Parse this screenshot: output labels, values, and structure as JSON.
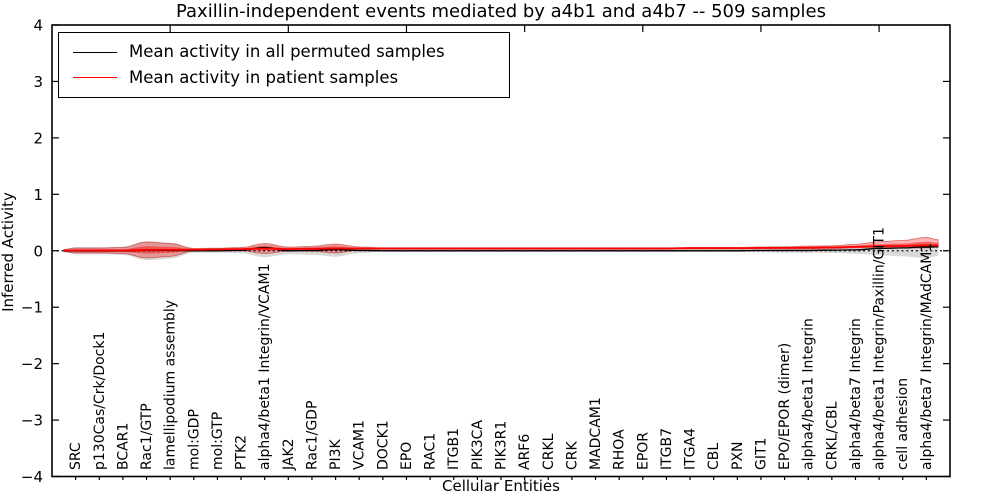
{
  "title": "Paxillin-independent events mediated by a4b1 and a4b7 -- 509 samples",
  "legend": [
    {
      "label": "Mean activity in all permuted samples",
      "color": "#000000"
    },
    {
      "label": "Mean activity in patient samples",
      "color": "#ff0000"
    }
  ],
  "chart_data": {
    "type": "violin+line",
    "title": "Paxillin-independent events mediated by a4b1 and a4b7 -- 509 samples",
    "xlabel": "Cellular Entities",
    "ylabel": "Inferred Activity",
    "ylim": [
      -4,
      4
    ],
    "xlim": [
      0,
      38
    ],
    "grid": false,
    "legend_position": "upper left",
    "zero_line": "dotted-black",
    "ytick_labels": [
      "4",
      "3",
      "2",
      "1",
      "0",
      "−1",
      "−2",
      "−3",
      "−4"
    ],
    "ytick_values": [
      4,
      3,
      2,
      1,
      0,
      -1,
      -2,
      -3,
      -4
    ],
    "top_axis_tick_values": [
      5,
      10,
      15,
      20,
      25,
      30,
      35
    ],
    "categories": [
      "SRC",
      "p130Cas/Crk/Dock1",
      "BCAR1",
      "Rac1/GTP",
      "lamellipodium assembly",
      "mol:GDP",
      "mol:GTP",
      "PTK2",
      "alpha4/beta1 Integrin/VCAM1",
      "JAK2",
      "Rac1/GDP",
      "PI3K",
      "VCAM1",
      "DOCK1",
      "EPO",
      "RAC1",
      "ITGB1",
      "PIK3CA",
      "PIK3R1",
      "ARF6",
      "CRKL",
      "CRK",
      "MADCAM1",
      "RHOA",
      "EPOR",
      "ITGB7",
      "ITGA4",
      "CBL",
      "PXN",
      "GIT1",
      "EPO/EPOR (dimer)",
      "alpha4/beta1 Integrin",
      "CRKL/CBL",
      "alpha4/beta7 Integrin",
      "alpha4/beta1 Integrin/Paxillin/GIT1",
      "cell adhesion",
      "alpha4/beta7 Integrin/MAdCAM1"
    ],
    "series": [
      {
        "name": "Mean activity in all permuted samples",
        "color": "#000000",
        "values": [
          -0.005,
          -0.005,
          -0.005,
          0.01,
          0.005,
          0,
          0,
          0.005,
          0.06,
          0,
          0.005,
          0.02,
          0.005,
          0,
          0,
          0,
          0,
          0,
          0,
          0,
          0,
          0,
          0,
          0,
          0,
          0,
          0,
          0,
          0,
          0.005,
          0.005,
          0.005,
          0.01,
          0.015,
          0.04,
          0.05,
          0.07
        ]
      },
      {
        "name": "Mean activity in patient samples",
        "color": "#ff0000",
        "values": [
          0.005,
          0.005,
          0.005,
          0.015,
          0.015,
          0.02,
          0.025,
          0.03,
          0.04,
          0.03,
          0.035,
          0.04,
          0.04,
          0.04,
          0.04,
          0.04,
          0.04,
          0.04,
          0.04,
          0.04,
          0.04,
          0.04,
          0.04,
          0.04,
          0.04,
          0.04,
          0.045,
          0.045,
          0.045,
          0.05,
          0.05,
          0.055,
          0.06,
          0.07,
          0.08,
          0.085,
          0.095
        ]
      }
    ],
    "patient_violin_halfwidth_up": [
      0.044,
      0.044,
      0.053,
      0.142,
      0.115,
      0.021,
      0.021,
      0.028,
      0.089,
      0.035,
      0.044,
      0.08,
      0.027,
      0.014,
      0.014,
      0.014,
      0.014,
      0.014,
      0.014,
      0.014,
      0.014,
      0.014,
      0.014,
      0.014,
      0.014,
      0.014,
      0.014,
      0.014,
      0.014,
      0.018,
      0.021,
      0.027,
      0.027,
      0.044,
      0.08,
      0.098,
      0.142
    ],
    "patient_violin_halfwidth_down": [
      0.044,
      0.044,
      0.053,
      0.142,
      0.115,
      0.021,
      0.021,
      0.028,
      0.089,
      0.035,
      0.044,
      0.08,
      0.027,
      0.014,
      0.014,
      0.014,
      0.014,
      0.014,
      0.014,
      0.014,
      0.014,
      0.014,
      0.014,
      0.014,
      0.014,
      0.014,
      0.014,
      0.014,
      0.014,
      0.018,
      0.021,
      0.024,
      0.024,
      0.018,
      0.027,
      0.035,
      0.044
    ],
    "permuted_violin_halfwidth": [
      0.062,
      0.062,
      0.071,
      0.168,
      0.142,
      0.035,
      0.035,
      0.044,
      0.115,
      0.062,
      0.071,
      0.106,
      0.044,
      0.021,
      0.021,
      0.021,
      0.021,
      0.021,
      0.021,
      0.021,
      0.021,
      0.021,
      0.021,
      0.021,
      0.021,
      0.021,
      0.021,
      0.021,
      0.021,
      0.027,
      0.035,
      0.04,
      0.04,
      0.053,
      0.08,
      0.098,
      0.133
    ],
    "colors": {
      "patient_fill": "rgba(255,0,0,0.30)",
      "patient_core_fill": "rgba(255,0,0,0.45)",
      "patient_edge": "rgba(170,0,0,0.45)",
      "permuted_fill": "rgba(0,0,0,0.15)",
      "mean_permuted": "#000000",
      "mean_patient": "#ff0000"
    }
  }
}
